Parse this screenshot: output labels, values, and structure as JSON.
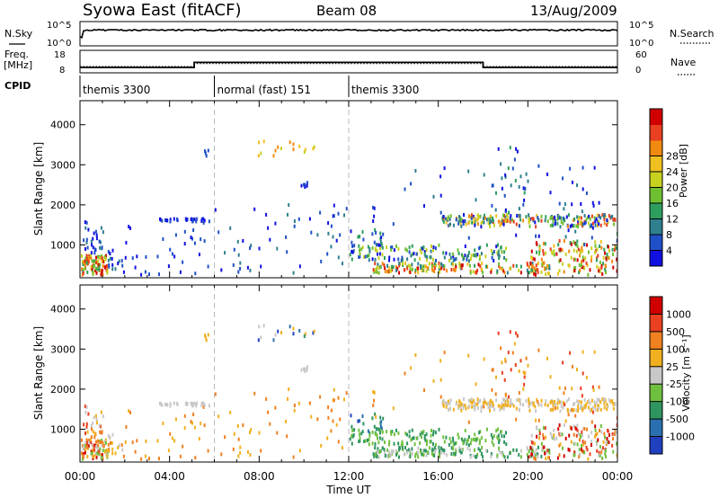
{
  "header": {
    "station": "Syowa East (fitACF)",
    "beam": "Beam 08",
    "date": "13/Aug/2009"
  },
  "status_panels": {
    "nsky_label": "N.Sky",
    "nsky_ticks": [
      "10^5",
      "10^0"
    ],
    "nsearch_label": "N.Search",
    "nsearch_ticks": [
      "10^5",
      "10^0"
    ],
    "freq_label_line1": "Freq.",
    "freq_label_line2": "[MHz]",
    "freq_ticks": [
      "18",
      "8"
    ],
    "nave_label": "Nave",
    "nave_ticks": [
      "60",
      "0"
    ],
    "cpid_label": "CPID",
    "cpid_segments": [
      {
        "label": "themis 3300",
        "start_hour": 0,
        "end_hour": 6
      },
      {
        "label": "normal (fast) 151",
        "start_hour": 6,
        "end_hour": 12
      },
      {
        "label": "themis 3300",
        "start_hour": 12,
        "end_hour": 24
      }
    ],
    "freq_steps": [
      {
        "start_hour": 0,
        "end_hour": 5.1,
        "value_mhz": 10.5
      },
      {
        "start_hour": 5.1,
        "end_hour": 18,
        "value_mhz": 13.3
      },
      {
        "start_hour": 18,
        "end_hour": 24,
        "value_mhz": 10.5
      }
    ]
  },
  "chart_data": [
    {
      "type": "heatmap",
      "xlabel": "",
      "ylabel": "Slant Range [km]",
      "xlim": [
        0,
        24
      ],
      "ylim": [
        180,
        4600
      ],
      "yticks": [
        1000,
        2000,
        3000,
        4000
      ],
      "colorbar": {
        "label": "Power [dB]",
        "ticks": [
          "4",
          "8",
          "12",
          "16",
          "20",
          "24",
          "28"
        ],
        "colors": [
          "#1010e0",
          "#2050c8",
          "#2f7f8f",
          "#2e9e5e",
          "#6ec030",
          "#c8d020",
          "#f0c020",
          "#f08a10",
          "#e84020",
          "#d00000"
        ]
      },
      "dashed_lines_hours": [
        6,
        12
      ]
    },
    {
      "type": "heatmap",
      "xlabel": "Time UT",
      "ylabel": "Slant Range [km]",
      "xlim": [
        0,
        24
      ],
      "ylim": [
        180,
        4600
      ],
      "yticks": [
        1000,
        2000,
        3000,
        4000
      ],
      "xtick_labels": [
        "00:00",
        "04:00",
        "08:00",
        "12:00",
        "16:00",
        "20:00",
        "00:00"
      ],
      "colorbar": {
        "label": "Velocity [m s⁻¹]",
        "ticks": [
          "1000",
          "500",
          "100",
          "25",
          "-25",
          "-100",
          "-500",
          "-1000"
        ],
        "colors": [
          "#2040c0",
          "#2a70b0",
          "#2e9560",
          "#70c040",
          "#c8c8c8",
          "#f0b020",
          "#f08020",
          "#e84020",
          "#d00000"
        ]
      },
      "dashed_lines_hours": [
        6,
        12
      ]
    }
  ]
}
